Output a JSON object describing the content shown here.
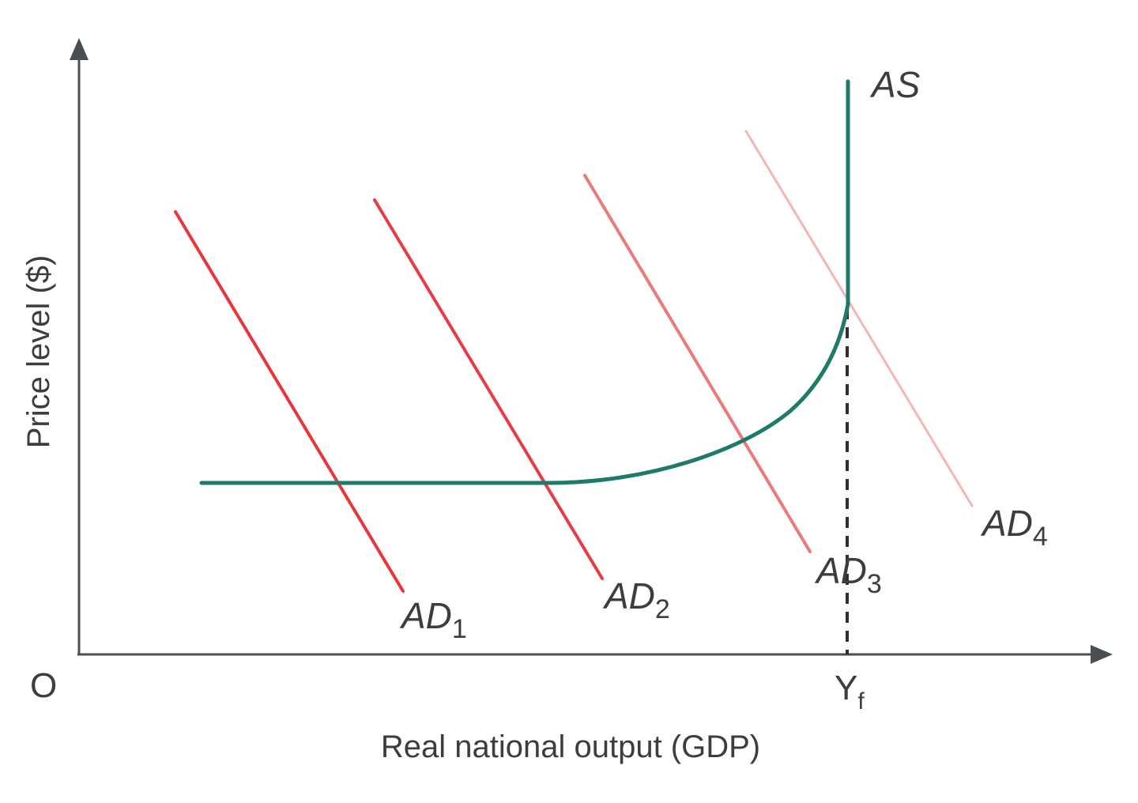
{
  "diagram": {
    "y_axis_label": "Price level ($)",
    "x_axis_label": "Real national output (GDP)",
    "origin_label": "O",
    "full_employment_label": {
      "main": "Y",
      "sub": "f"
    },
    "aggregate_supply": {
      "label": "AS",
      "color": "#1f7a6a"
    },
    "aggregate_demand": [
      {
        "main": "AD",
        "sub": "1",
        "color": "#e8343a"
      },
      {
        "main": "AD",
        "sub": "2",
        "color": "#e83c42"
      },
      {
        "main": "AD",
        "sub": "3",
        "color": "#ec7a78"
      },
      {
        "main": "AD",
        "sub": "4",
        "color": "#f7b4b2"
      }
    ],
    "axis_color": "#4a5052"
  }
}
